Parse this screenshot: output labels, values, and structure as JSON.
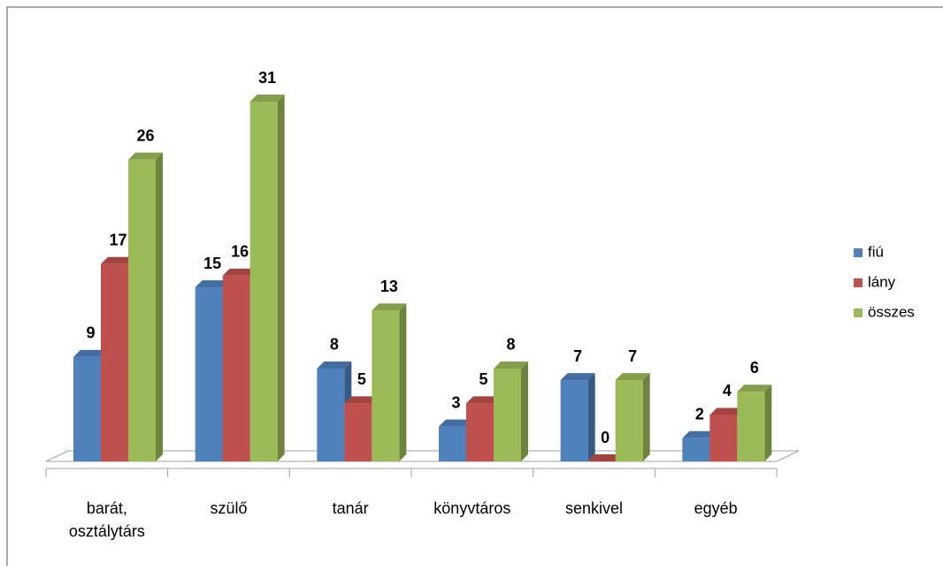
{
  "chart_data": {
    "type": "bar3d",
    "categories": [
      "barát, osztálytárs",
      "szülő",
      "tanár",
      "könyvtáros",
      "senkivel",
      "egyéb"
    ],
    "series": [
      {
        "name": "fiú",
        "color": "#4f81bd",
        "values": [
          9,
          15,
          8,
          3,
          7,
          2
        ]
      },
      {
        "name": "lány",
        "color": "#c0504d",
        "values": [
          17,
          16,
          5,
          5,
          0,
          4
        ]
      },
      {
        "name": "összes",
        "color": "#9bbb59",
        "values": [
          26,
          31,
          13,
          8,
          7,
          6
        ]
      }
    ],
    "legend": "right"
  }
}
